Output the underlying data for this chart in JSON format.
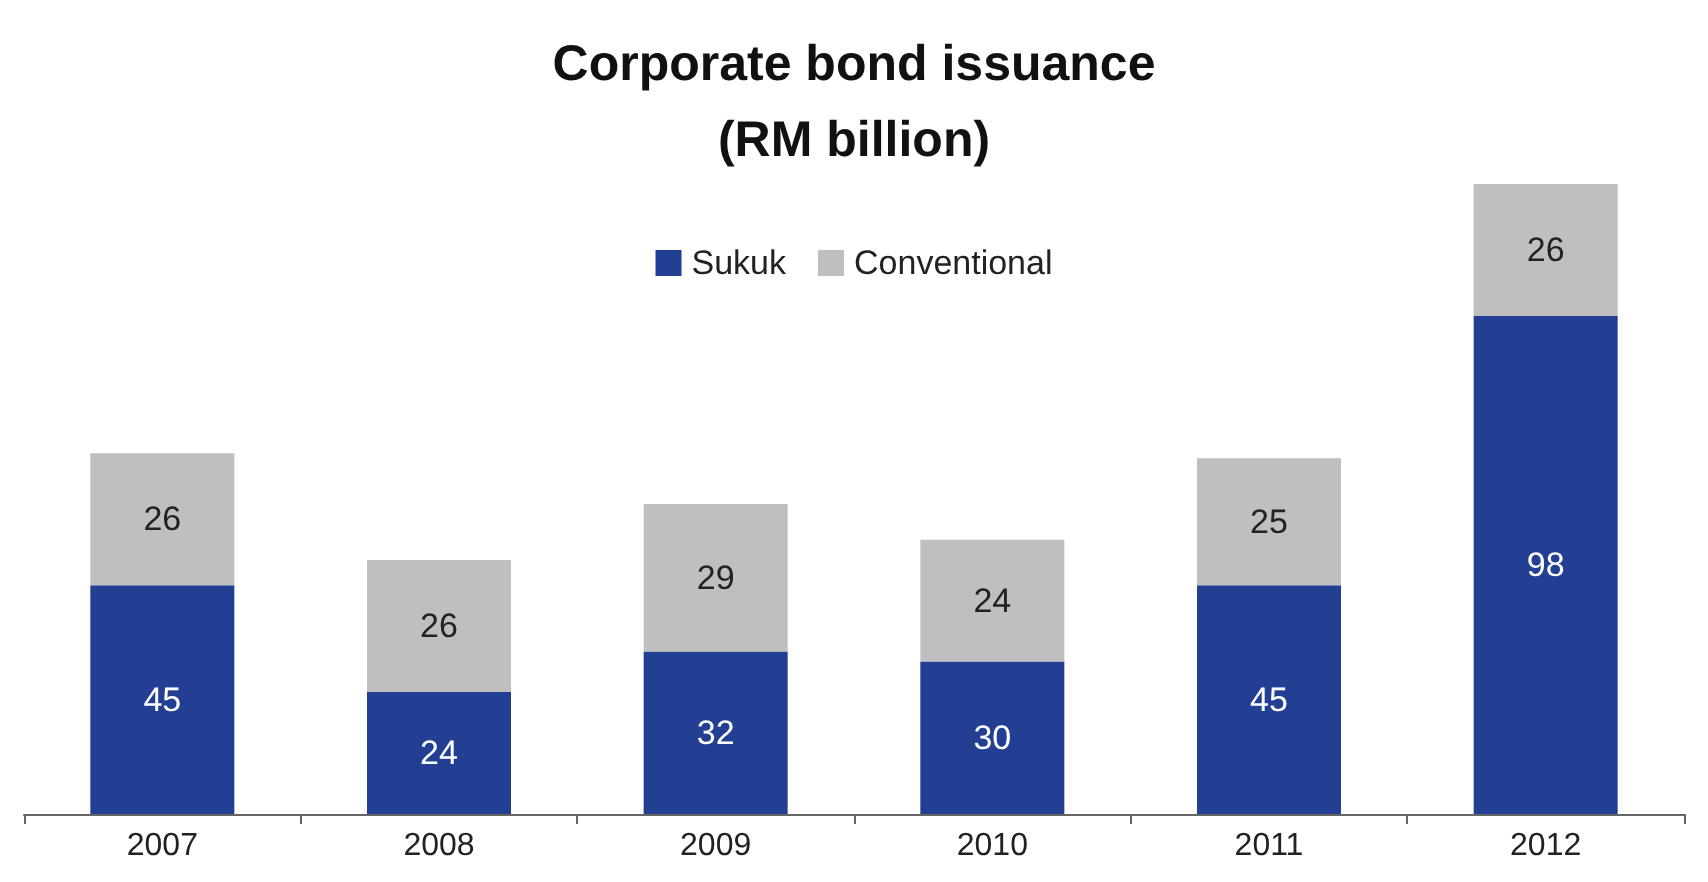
{
  "chart_data": {
    "type": "bar",
    "title": "Corporate bond issuance\n(RM billion)",
    "categories": [
      "2007",
      "2008",
      "2009",
      "2010",
      "2011",
      "2012"
    ],
    "stacked": true,
    "data_labels": true,
    "legend": "top",
    "series": [
      {
        "name": "Sukuk",
        "color": "#233f94",
        "values": [
          45,
          24,
          32,
          30,
          45,
          98
        ]
      },
      {
        "name": "Conventional",
        "color": "#bfbfbf",
        "values": [
          26,
          26,
          29,
          24,
          25,
          26
        ]
      }
    ]
  }
}
